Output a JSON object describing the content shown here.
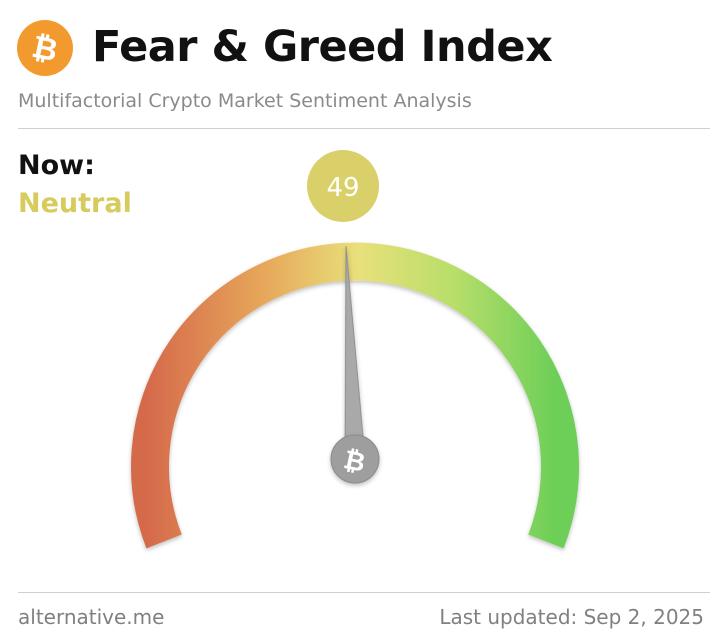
{
  "header": {
    "logo_icon": "bitcoin-icon",
    "logo_color": "#F39A2E",
    "title": "Fear & Greed Index",
    "subtitle": "Multifactorial Crypto Market Sentiment Analysis"
  },
  "current": {
    "label": "Now:",
    "classification": "Neutral",
    "classification_color": "#D6CB5C",
    "value": "49",
    "index_value": 49,
    "index_min": 0,
    "index_max": 100,
    "badge_color": "#D9D06A"
  },
  "gauge": {
    "colors": {
      "fear": "#D56A4C",
      "neutral": "#E8E07A",
      "greed": "#6ECF58"
    },
    "needle_color": "#A9A9A9",
    "hub_icon": "bitcoin-icon"
  },
  "footer": {
    "source": "alternative.me",
    "last_updated": "Last updated: Sep 2, 2025"
  }
}
